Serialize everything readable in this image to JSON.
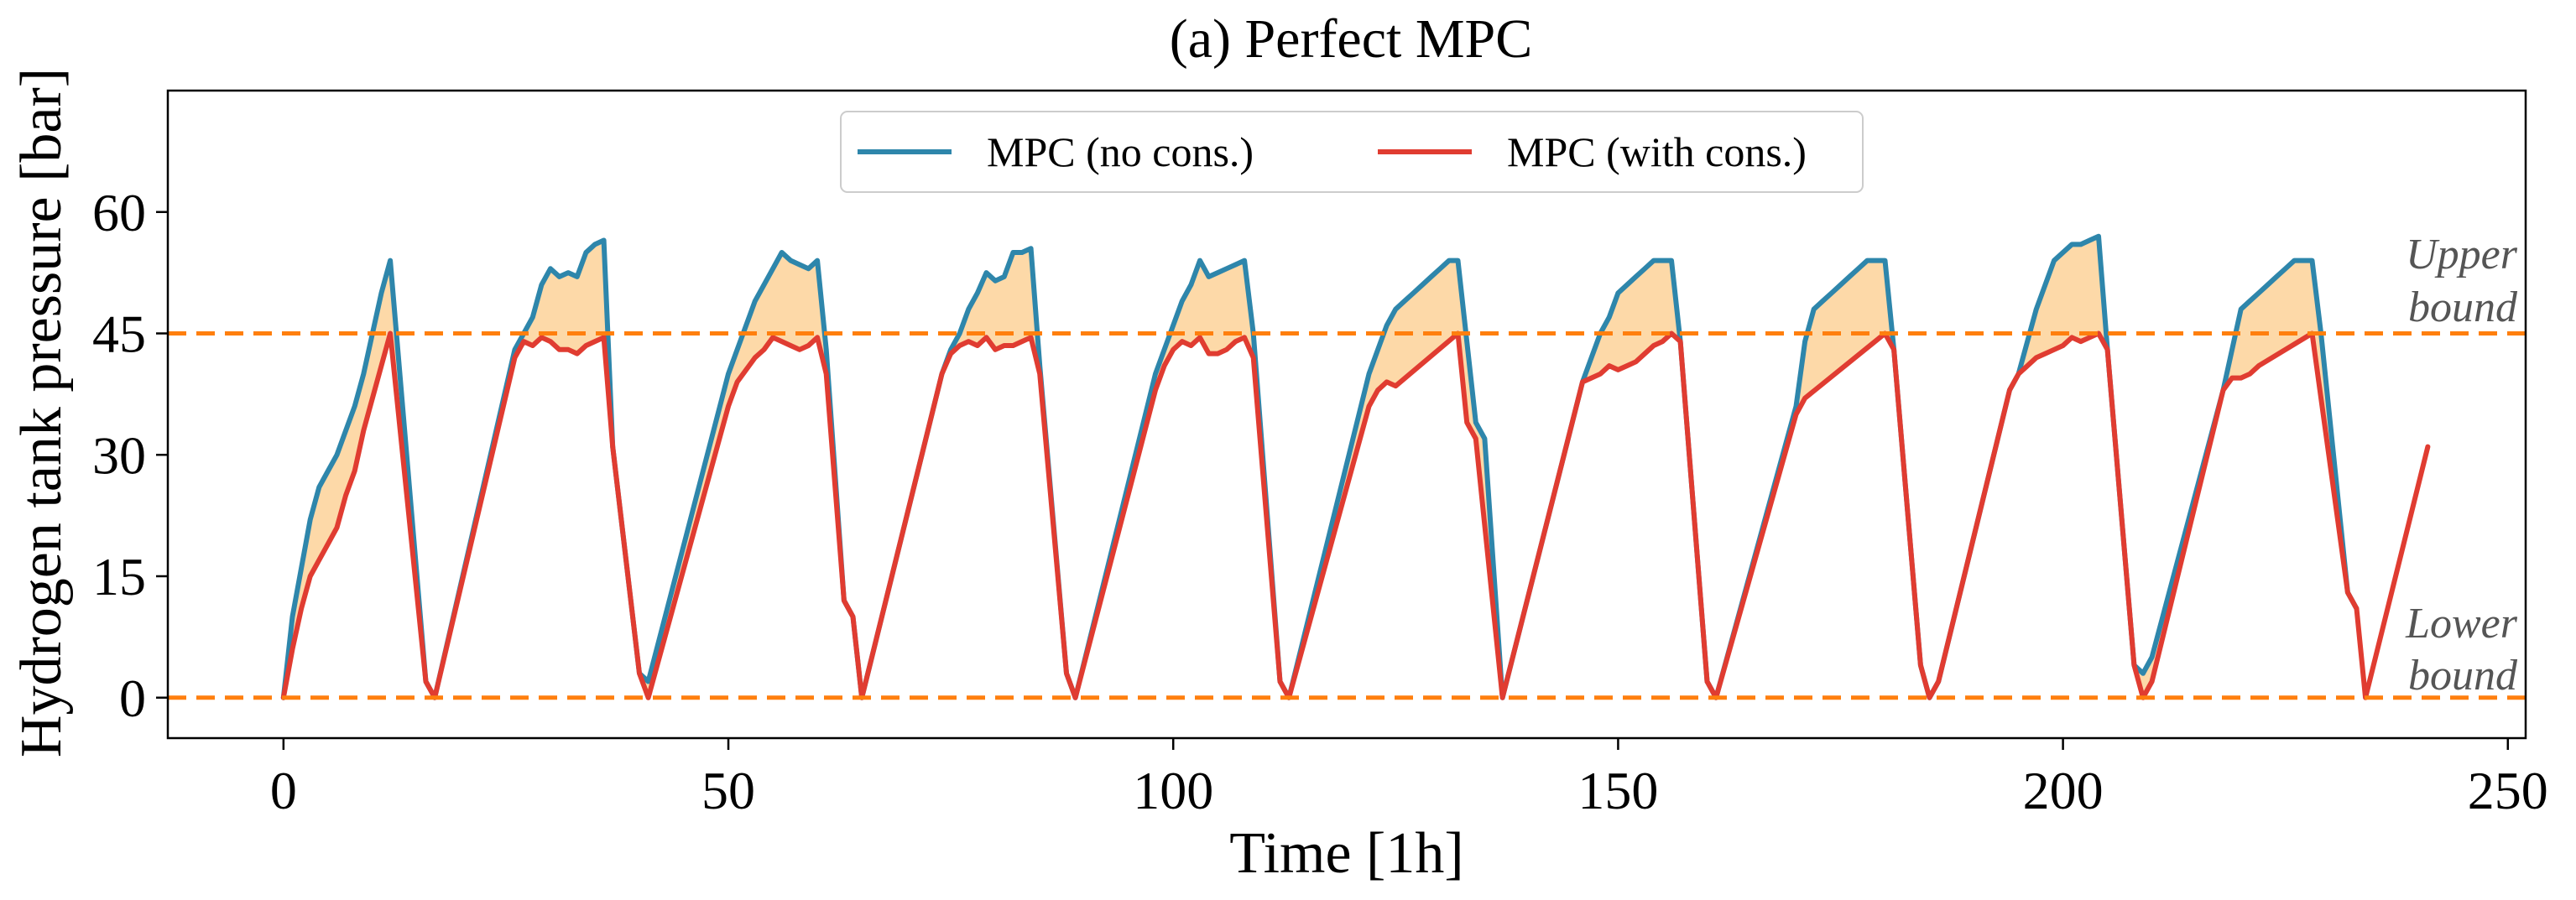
{
  "chart_data": {
    "type": "line",
    "title": "(a) Perfect MPC",
    "xlabel": "Time [1h]",
    "ylabel": "Hydrogen tank pressure [bar]",
    "xlim": [
      -13,
      252
    ],
    "ylim": [
      -5,
      75
    ],
    "xticks": [
      0,
      50,
      100,
      150,
      200,
      250
    ],
    "yticks": [
      0,
      15,
      30,
      45,
      60
    ],
    "grid": false,
    "legend": {
      "placement": "top-center",
      "columns": 2
    },
    "upper_bound": {
      "value": 45,
      "label_line1": "Upper",
      "label_line2": "bound",
      "color": "#FF7F0E"
    },
    "lower_bound": {
      "value": 0,
      "label_line1": "Lower",
      "label_line2": "bound",
      "color": "#FF7F0E"
    },
    "fill_color": "#FDD9A8",
    "series": [
      {
        "name": "MPC (no cons.)",
        "color": "#2E86AB",
        "points": [
          [
            0,
            0
          ],
          [
            1,
            10
          ],
          [
            2,
            16
          ],
          [
            3,
            22
          ],
          [
            4,
            26
          ],
          [
            5,
            28
          ],
          [
            6,
            30
          ],
          [
            7,
            33
          ],
          [
            8,
            36
          ],
          [
            9,
            40
          ],
          [
            10,
            45
          ],
          [
            11,
            50
          ],
          [
            12,
            54
          ],
          [
            16,
            2
          ],
          [
            17,
            0
          ],
          [
            26,
            43
          ],
          [
            27,
            45
          ],
          [
            28,
            47
          ],
          [
            29,
            51
          ],
          [
            30,
            53
          ],
          [
            31,
            52
          ],
          [
            32,
            52.5
          ],
          [
            33,
            52
          ],
          [
            34,
            55
          ],
          [
            35,
            56
          ],
          [
            36,
            56.5
          ],
          [
            37,
            31
          ],
          [
            40,
            3
          ],
          [
            41,
            2
          ],
          [
            50,
            40
          ],
          [
            51,
            43
          ],
          [
            52,
            46
          ],
          [
            53,
            49
          ],
          [
            54,
            51
          ],
          [
            55,
            53
          ],
          [
            56,
            55
          ],
          [
            57,
            54
          ],
          [
            58,
            53.5
          ],
          [
            59,
            53
          ],
          [
            60,
            54
          ],
          [
            61,
            43
          ],
          [
            63,
            12
          ],
          [
            64,
            10
          ],
          [
            65,
            0
          ],
          [
            74,
            40
          ],
          [
            75,
            43
          ],
          [
            76,
            45
          ],
          [
            77,
            48
          ],
          [
            78,
            50
          ],
          [
            79,
            52.5
          ],
          [
            80,
            51.5
          ],
          [
            81,
            52
          ],
          [
            82,
            55
          ],
          [
            83,
            55
          ],
          [
            84,
            55.5
          ],
          [
            85,
            41
          ],
          [
            88,
            3
          ],
          [
            89,
            0
          ],
          [
            98,
            40
          ],
          [
            99,
            43
          ],
          [
            100,
            46
          ],
          [
            101,
            49
          ],
          [
            102,
            51
          ],
          [
            103,
            54
          ],
          [
            104,
            52
          ],
          [
            105,
            52.5
          ],
          [
            106,
            53
          ],
          [
            107,
            53.5
          ],
          [
            108,
            54
          ],
          [
            109,
            45
          ],
          [
            112,
            2
          ],
          [
            113,
            0
          ],
          [
            122,
            40
          ],
          [
            123,
            43
          ],
          [
            124,
            46
          ],
          [
            125,
            48
          ],
          [
            126,
            49
          ],
          [
            127,
            50
          ],
          [
            128,
            51
          ],
          [
            129,
            52
          ],
          [
            130,
            53
          ],
          [
            131,
            54
          ],
          [
            132,
            54
          ],
          [
            134,
            34
          ],
          [
            135,
            32
          ],
          [
            137,
            0
          ],
          [
            146,
            39
          ],
          [
            147,
            42
          ],
          [
            148,
            45
          ],
          [
            149,
            47
          ],
          [
            150,
            50
          ],
          [
            151,
            51
          ],
          [
            152,
            52
          ],
          [
            153,
            53
          ],
          [
            154,
            54
          ],
          [
            155,
            54
          ],
          [
            156,
            54
          ],
          [
            157,
            44
          ],
          [
            160,
            2
          ],
          [
            161,
            0
          ],
          [
            170,
            36
          ],
          [
            171,
            44
          ],
          [
            172,
            48
          ],
          [
            173,
            49
          ],
          [
            174,
            50
          ],
          [
            175,
            51
          ],
          [
            176,
            52
          ],
          [
            177,
            53
          ],
          [
            178,
            54
          ],
          [
            179,
            54
          ],
          [
            180,
            54
          ],
          [
            181,
            43
          ],
          [
            184,
            4
          ],
          [
            185,
            0
          ],
          [
            186,
            2
          ],
          [
            194,
            38
          ],
          [
            195,
            40
          ],
          [
            196,
            44
          ],
          [
            197,
            48
          ],
          [
            198,
            51
          ],
          [
            199,
            54
          ],
          [
            200,
            55
          ],
          [
            201,
            56
          ],
          [
            202,
            56
          ],
          [
            203,
            56.5
          ],
          [
            204,
            57
          ],
          [
            205,
            43
          ],
          [
            208,
            4
          ],
          [
            209,
            3
          ],
          [
            210,
            5
          ],
          [
            218,
            38
          ],
          [
            219,
            43
          ],
          [
            220,
            48
          ],
          [
            221,
            49
          ],
          [
            222,
            50
          ],
          [
            223,
            51
          ],
          [
            224,
            52
          ],
          [
            225,
            53
          ],
          [
            226,
            54
          ],
          [
            227,
            54
          ],
          [
            228,
            54
          ],
          [
            229,
            45
          ],
          [
            232,
            13
          ],
          [
            233,
            11
          ]
        ]
      },
      {
        "name": "MPC (with cons.)",
        "color": "#E03C31",
        "points": [
          [
            0,
            0
          ],
          [
            1,
            6
          ],
          [
            2,
            11
          ],
          [
            3,
            15
          ],
          [
            4,
            17
          ],
          [
            5,
            19
          ],
          [
            6,
            21
          ],
          [
            7,
            25
          ],
          [
            8,
            28
          ],
          [
            9,
            33
          ],
          [
            10,
            37
          ],
          [
            11,
            41
          ],
          [
            12,
            45
          ],
          [
            16,
            2
          ],
          [
            17,
            0
          ],
          [
            26,
            42
          ],
          [
            27,
            44
          ],
          [
            28,
            43.5
          ],
          [
            29,
            44.5
          ],
          [
            30,
            44
          ],
          [
            31,
            43
          ],
          [
            32,
            43
          ],
          [
            33,
            42.5
          ],
          [
            34,
            43.5
          ],
          [
            35,
            44
          ],
          [
            36,
            44.5
          ],
          [
            37,
            31
          ],
          [
            40,
            3
          ],
          [
            41,
            0
          ],
          [
            50,
            36
          ],
          [
            51,
            39
          ],
          [
            52,
            40.5
          ],
          [
            53,
            42
          ],
          [
            54,
            43
          ],
          [
            55,
            44.5
          ],
          [
            56,
            44
          ],
          [
            57,
            43.5
          ],
          [
            58,
            43
          ],
          [
            59,
            43.5
          ],
          [
            60,
            44.5
          ],
          [
            61,
            40
          ],
          [
            63,
            12
          ],
          [
            64,
            10
          ],
          [
            65,
            0
          ],
          [
            74,
            40
          ],
          [
            75,
            42.5
          ],
          [
            76,
            43.5
          ],
          [
            77,
            44
          ],
          [
            78,
            43.5
          ],
          [
            79,
            44.5
          ],
          [
            80,
            43
          ],
          [
            81,
            43.5
          ],
          [
            82,
            43.5
          ],
          [
            83,
            44
          ],
          [
            84,
            44.5
          ],
          [
            85,
            40
          ],
          [
            88,
            3
          ],
          [
            89,
            0
          ],
          [
            98,
            38
          ],
          [
            99,
            41
          ],
          [
            100,
            43
          ],
          [
            101,
            44
          ],
          [
            102,
            43.5
          ],
          [
            103,
            44.5
          ],
          [
            104,
            42.5
          ],
          [
            105,
            42.5
          ],
          [
            106,
            43
          ],
          [
            107,
            44
          ],
          [
            108,
            44.5
          ],
          [
            109,
            42
          ],
          [
            112,
            2
          ],
          [
            113,
            0
          ],
          [
            122,
            36
          ],
          [
            123,
            38
          ],
          [
            124,
            39
          ],
          [
            125,
            38.5
          ],
          [
            132,
            45
          ],
          [
            133,
            34
          ],
          [
            134,
            32
          ],
          [
            137,
            0
          ],
          [
            146,
            39
          ],
          [
            147,
            39.5
          ],
          [
            148,
            40
          ],
          [
            149,
            41
          ],
          [
            150,
            40.5
          ],
          [
            151,
            41
          ],
          [
            152,
            41.5
          ],
          [
            153,
            42.5
          ],
          [
            154,
            43.5
          ],
          [
            155,
            44
          ],
          [
            156,
            45
          ],
          [
            157,
            44
          ],
          [
            160,
            2
          ],
          [
            161,
            0
          ],
          [
            170,
            35
          ],
          [
            171,
            37
          ],
          [
            180,
            45
          ],
          [
            181,
            43
          ],
          [
            184,
            4
          ],
          [
            185,
            0
          ],
          [
            186,
            2
          ],
          [
            194,
            38
          ],
          [
            195,
            40
          ],
          [
            196,
            41
          ],
          [
            197,
            42
          ],
          [
            198,
            42.5
          ],
          [
            199,
            43
          ],
          [
            200,
            43.5
          ],
          [
            201,
            44.5
          ],
          [
            202,
            44
          ],
          [
            203,
            44.5
          ],
          [
            204,
            45
          ],
          [
            205,
            43
          ],
          [
            208,
            4
          ],
          [
            209,
            0
          ],
          [
            210,
            2
          ],
          [
            218,
            38
          ],
          [
            219,
            39.5
          ],
          [
            220,
            39.5
          ],
          [
            221,
            40
          ],
          [
            222,
            41
          ],
          [
            228,
            45
          ],
          [
            232,
            13
          ],
          [
            233,
            11
          ],
          [
            234,
            0
          ],
          [
            241,
            31
          ]
        ]
      }
    ]
  }
}
